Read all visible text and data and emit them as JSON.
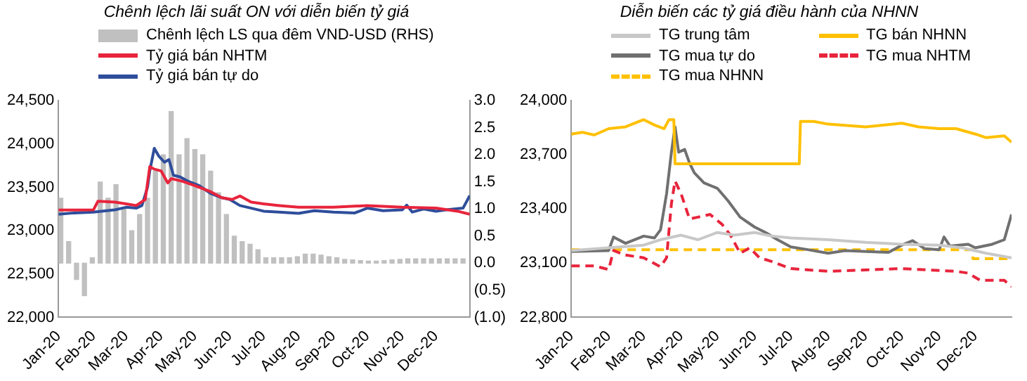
{
  "chart_data": [
    {
      "type": "line",
      "title": "Chênh lệch lãi suất ON với diễn biến tỷ giá",
      "legend": "top",
      "marker": "none",
      "xlim": [
        "2020-01-01",
        "2020-12-31"
      ],
      "xticks": [
        {
          "value": "2020-01-01",
          "label": "Jan-20"
        },
        {
          "value": "2020-02-01",
          "label": "Feb-20"
        },
        {
          "value": "2020-03-01",
          "label": "Mar-20"
        },
        {
          "value": "2020-04-01",
          "label": "Apr-20"
        },
        {
          "value": "2020-05-01",
          "label": "May-20"
        },
        {
          "value": "2020-06-01",
          "label": "Jun-20"
        },
        {
          "value": "2020-07-01",
          "label": "Jul-20"
        },
        {
          "value": "2020-08-01",
          "label": "Aug-20"
        },
        {
          "value": "2020-09-01",
          "label": "Sep-20"
        },
        {
          "value": "2020-10-01",
          "label": "Oct-20"
        },
        {
          "value": "2020-11-01",
          "label": "Nov-20"
        },
        {
          "value": "2020-12-01",
          "label": "Dec-20"
        }
      ],
      "ylim": [
        22000,
        24500
      ],
      "yticks": [
        {
          "value": 22000,
          "label": "22,000"
        },
        {
          "value": 22500,
          "label": "22,500"
        },
        {
          "value": 23000,
          "label": "23,000"
        },
        {
          "value": 23500,
          "label": "23,500"
        },
        {
          "value": 24000,
          "label": "24,000"
        },
        {
          "value": 24500,
          "label": "24,500"
        }
      ],
      "y2lim": [
        -1,
        3
      ],
      "y2ticks": [
        {
          "value": -1,
          "label": "(1.0)"
        },
        {
          "value": -0.5,
          "label": "(0.5)"
        },
        {
          "value": 0,
          "label": "0.0"
        },
        {
          "value": 0.5,
          "label": "0.5"
        },
        {
          "value": 1,
          "label": "1.0"
        },
        {
          "value": 1.5,
          "label": "1.5"
        },
        {
          "value": 2,
          "label": "2.0"
        },
        {
          "value": 2.5,
          "label": "2.5"
        },
        {
          "value": 3,
          "label": "3.0"
        }
      ],
      "series": [
        {
          "name": "Chênh lệch LS qua đêm VND-USD (RHS)",
          "type": "bar",
          "axis": "y2",
          "color": "#c0c0c0",
          "x": [
            "2020-01-03",
            "2020-01-10",
            "2020-01-17",
            "2020-01-24",
            "2020-01-31",
            "2020-02-07",
            "2020-02-14",
            "2020-02-21",
            "2020-02-28",
            "2020-03-06",
            "2020-03-13",
            "2020-03-20",
            "2020-03-27",
            "2020-04-03",
            "2020-04-10",
            "2020-04-17",
            "2020-04-24",
            "2020-05-01",
            "2020-05-08",
            "2020-05-15",
            "2020-05-22",
            "2020-05-29",
            "2020-06-05",
            "2020-06-12",
            "2020-06-19",
            "2020-06-26",
            "2020-07-03",
            "2020-07-10",
            "2020-07-17",
            "2020-07-24",
            "2020-07-31",
            "2020-08-07",
            "2020-08-14",
            "2020-08-21",
            "2020-08-28",
            "2020-09-04",
            "2020-09-11",
            "2020-09-18",
            "2020-09-25",
            "2020-10-02",
            "2020-10-09",
            "2020-10-16",
            "2020-10-23",
            "2020-10-30",
            "2020-11-06",
            "2020-11-13",
            "2020-11-20",
            "2020-11-27",
            "2020-12-04",
            "2020-12-11",
            "2020-12-18",
            "2020-12-25"
          ],
          "values": [
            1.2,
            0.4,
            -0.3,
            -0.6,
            0.1,
            1.5,
            1.2,
            1.45,
            1.0,
            0.6,
            0.9,
            1.2,
            1.7,
            2.0,
            2.8,
            2.0,
            2.3,
            2.1,
            2.0,
            1.7,
            1.3,
            0.9,
            0.5,
            0.4,
            0.35,
            0.25,
            0.1,
            0.1,
            0.1,
            0.1,
            0.12,
            0.17,
            0.17,
            0.15,
            0.12,
            0.1,
            0.07,
            0.06,
            0.05,
            0.04,
            0.04,
            0.05,
            0.06,
            0.07,
            0.08,
            0.08,
            0.08,
            0.08,
            0.08,
            0.08,
            0.08,
            0.08
          ]
        },
        {
          "name": "Tỷ giá bán NHTM",
          "type": "line",
          "color": "#e8243c",
          "x": [
            "2020-01-01",
            "2020-01-20",
            "2020-02-01",
            "2020-02-05",
            "2020-02-20",
            "2020-03-01",
            "2020-03-10",
            "2020-03-18",
            "2020-03-22",
            "2020-03-26",
            "2020-04-01",
            "2020-04-07",
            "2020-04-10",
            "2020-04-20",
            "2020-05-01",
            "2020-05-15",
            "2020-05-25",
            "2020-06-03",
            "2020-06-10",
            "2020-06-20",
            "2020-07-01",
            "2020-07-15",
            "2020-08-01",
            "2020-09-01",
            "2020-10-01",
            "2020-11-01",
            "2020-12-01",
            "2020-12-20",
            "2020-12-31"
          ],
          "values": [
            23238,
            23238,
            23240,
            23340,
            23330,
            23310,
            23290,
            23360,
            23740,
            23710,
            23690,
            23550,
            23600,
            23570,
            23520,
            23450,
            23380,
            23360,
            23400,
            23330,
            23310,
            23290,
            23270,
            23270,
            23290,
            23270,
            23260,
            23225,
            23190
          ]
        },
        {
          "name": "Tỷ giá bán tự do",
          "type": "line",
          "color": "#2e4d9b",
          "x": [
            "2020-01-01",
            "2020-01-15",
            "2020-02-01",
            "2020-02-20",
            "2020-03-01",
            "2020-03-10",
            "2020-03-15",
            "2020-03-20",
            "2020-03-22",
            "2020-03-26",
            "2020-03-30",
            "2020-04-04",
            "2020-04-08",
            "2020-04-12",
            "2020-04-18",
            "2020-04-25",
            "2020-05-05",
            "2020-05-15",
            "2020-05-25",
            "2020-06-01",
            "2020-06-10",
            "2020-06-20",
            "2020-07-01",
            "2020-07-15",
            "2020-08-01",
            "2020-08-15",
            "2020-09-01",
            "2020-09-20",
            "2020-10-01",
            "2020-10-15",
            "2020-11-01",
            "2020-11-05",
            "2020-11-10",
            "2020-11-20",
            "2020-12-01",
            "2020-12-10",
            "2020-12-25",
            "2020-12-31"
          ],
          "values": [
            23190,
            23205,
            23215,
            23240,
            23270,
            23260,
            23290,
            23500,
            23690,
            23950,
            23860,
            23790,
            23820,
            23640,
            23620,
            23570,
            23520,
            23430,
            23380,
            23360,
            23290,
            23260,
            23225,
            23215,
            23200,
            23230,
            23215,
            23205,
            23260,
            23230,
            23240,
            23295,
            23215,
            23250,
            23225,
            23240,
            23260,
            23405
          ]
        }
      ]
    },
    {
      "type": "line",
      "title": "Diễn biến các tỷ giá điều hành của NHNN",
      "legend": "top",
      "marker": "none",
      "xlim": [
        "2020-01-01",
        "2020-12-31"
      ],
      "xticks": [
        {
          "value": "2020-01-01",
          "label": "Jan-20"
        },
        {
          "value": "2020-02-01",
          "label": "Feb-20"
        },
        {
          "value": "2020-03-01",
          "label": "Mar-20"
        },
        {
          "value": "2020-04-01",
          "label": "Apr-20"
        },
        {
          "value": "2020-05-01",
          "label": "May-20"
        },
        {
          "value": "2020-06-01",
          "label": "Jun-20"
        },
        {
          "value": "2020-07-01",
          "label": "Jul-20"
        },
        {
          "value": "2020-08-01",
          "label": "Aug-20"
        },
        {
          "value": "2020-09-01",
          "label": "Sep-20"
        },
        {
          "value": "2020-10-01",
          "label": "Oct-20"
        },
        {
          "value": "2020-11-01",
          "label": "Nov-20"
        },
        {
          "value": "2020-12-01",
          "label": "Dec-20"
        }
      ],
      "ylim": [
        22800,
        24000
      ],
      "yticks": [
        {
          "value": 22800,
          "label": "22,800"
        },
        {
          "value": 23100,
          "label": "23,100"
        },
        {
          "value": 23400,
          "label": "23,400"
        },
        {
          "value": 23700,
          "label": "23,700"
        },
        {
          "value": 24000,
          "label": "24,000"
        }
      ],
      "series": [
        {
          "name": "TG trung tâm",
          "color": "#c8c8c8",
          "line_style": "solid",
          "x": [
            "2020-01-01",
            "2020-02-01",
            "2020-03-01",
            "2020-03-15",
            "2020-04-01",
            "2020-04-15",
            "2020-05-01",
            "2020-05-15",
            "2020-06-01",
            "2020-06-15",
            "2020-07-01",
            "2020-08-01",
            "2020-09-01",
            "2020-10-01",
            "2020-11-01",
            "2020-11-20",
            "2020-12-10",
            "2020-12-31"
          ],
          "values": [
            23170,
            23185,
            23200,
            23230,
            23255,
            23230,
            23270,
            23255,
            23270,
            23250,
            23240,
            23230,
            23215,
            23205,
            23200,
            23185,
            23155,
            23130
          ]
        },
        {
          "name": "TG bán NHNN",
          "color": "#ffc000",
          "line_style": "solid",
          "x": [
            "2020-01-01",
            "2020-01-10",
            "2020-01-20",
            "2020-02-01",
            "2020-02-15",
            "2020-03-01",
            "2020-03-10",
            "2020-03-18",
            "2020-03-22",
            "2020-03-26",
            "2020-03-27",
            "2020-07-08",
            "2020-07-09",
            "2020-07-20",
            "2020-08-01",
            "2020-09-01",
            "2020-10-01",
            "2020-10-15",
            "2020-11-01",
            "2020-11-15",
            "2020-12-01",
            "2020-12-10",
            "2020-12-25",
            "2020-12-31"
          ],
          "values": [
            23815,
            23825,
            23810,
            23845,
            23855,
            23895,
            23865,
            23845,
            23895,
            23895,
            23650,
            23650,
            23885,
            23885,
            23870,
            23855,
            23875,
            23855,
            23845,
            23845,
            23815,
            23795,
            23805,
            23770
          ]
        },
        {
          "name": "TG mua tự do",
          "color": "#707070",
          "line_style": "solid",
          "x": [
            "2020-01-01",
            "2020-02-01",
            "2020-02-05",
            "2020-02-15",
            "2020-03-01",
            "2020-03-10",
            "2020-03-15",
            "2020-03-20",
            "2020-03-24",
            "2020-03-27",
            "2020-03-30",
            "2020-04-04",
            "2020-04-08",
            "2020-04-12",
            "2020-04-20",
            "2020-05-01",
            "2020-05-10",
            "2020-05-20",
            "2020-06-01",
            "2020-06-10",
            "2020-06-20",
            "2020-07-01",
            "2020-07-15",
            "2020-08-01",
            "2020-08-15",
            "2020-09-01",
            "2020-09-20",
            "2020-10-01",
            "2020-10-10",
            "2020-10-20",
            "2020-11-01",
            "2020-11-05",
            "2020-11-10",
            "2020-11-25",
            "2020-12-01",
            "2020-12-15",
            "2020-12-25",
            "2020-12-31"
          ],
          "values": [
            23165,
            23170,
            23245,
            23210,
            23250,
            23240,
            23285,
            23485,
            23715,
            23855,
            23715,
            23730,
            23655,
            23600,
            23545,
            23515,
            23445,
            23355,
            23300,
            23270,
            23230,
            23190,
            23175,
            23155,
            23170,
            23165,
            23160,
            23200,
            23225,
            23180,
            23175,
            23245,
            23195,
            23205,
            23185,
            23205,
            23230,
            23370
          ]
        },
        {
          "name": "TG mua NHTM",
          "color": "#e8243c",
          "line_style": "dashed",
          "x": [
            "2020-01-01",
            "2020-01-20",
            "2020-02-01",
            "2020-02-05",
            "2020-02-15",
            "2020-03-01",
            "2020-03-15",
            "2020-03-20",
            "2020-03-24",
            "2020-03-27",
            "2020-04-01",
            "2020-04-08",
            "2020-04-15",
            "2020-04-25",
            "2020-05-05",
            "2020-05-12",
            "2020-05-20",
            "2020-05-28",
            "2020-06-05",
            "2020-06-15",
            "2020-07-01",
            "2020-08-01",
            "2020-10-01",
            "2020-11-15",
            "2020-11-25",
            "2020-12-05",
            "2020-12-25",
            "2020-12-31"
          ],
          "values": [
            23085,
            23085,
            23065,
            23170,
            23145,
            23130,
            23080,
            23130,
            23430,
            23555,
            23485,
            23345,
            23355,
            23370,
            23315,
            23255,
            23155,
            23185,
            23130,
            23110,
            23070,
            23055,
            23070,
            23055,
            23045,
            23005,
            23005,
            22970
          ]
        },
        {
          "name": "TG mua NHNN",
          "color": "#ffc000",
          "line_style": "dashed",
          "x": [
            "2020-01-01",
            "2020-11-28",
            "2020-11-29",
            "2020-12-31"
          ],
          "values": [
            23175,
            23175,
            23125,
            23125
          ]
        }
      ]
    }
  ]
}
